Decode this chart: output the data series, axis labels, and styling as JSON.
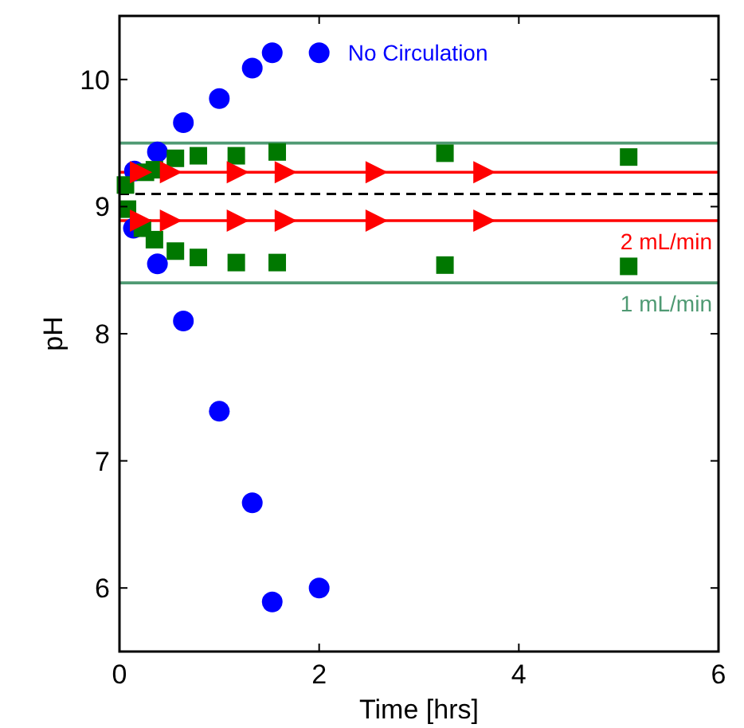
{
  "chart_data": {
    "type": "scatter",
    "xlabel": "Time [hrs]",
    "ylabel": "pH",
    "xlim": [
      0,
      6
    ],
    "ylim": [
      5.5,
      10.5
    ],
    "xticks": [
      0,
      2,
      4,
      6
    ],
    "yticks": [
      6,
      7,
      8,
      9,
      10
    ],
    "grid": false,
    "series": [
      {
        "name": "No Circulation",
        "color": "#0000ff",
        "marker": "circle",
        "x": [
          0.15,
          0.38,
          0.64,
          1.0,
          1.33,
          1.53,
          2.0
        ],
        "values": [
          9.28,
          9.43,
          9.66,
          9.85,
          10.09,
          10.21,
          10.21
        ]
      },
      {
        "color": "#0000ff",
        "marker": "circle",
        "x": [
          0.14,
          0.38,
          0.64,
          1.0,
          1.33,
          1.53,
          2.0
        ],
        "values": [
          8.83,
          8.55,
          8.1,
          7.39,
          6.67,
          5.89,
          6.0
        ]
      },
      {
        "color": "#007800",
        "marker": "square",
        "x": [
          0.06,
          0.26,
          0.35,
          0.56,
          0.79,
          1.17,
          1.58,
          3.26,
          5.1
        ],
        "values": [
          9.17,
          9.27,
          9.29,
          9.38,
          9.4,
          9.4,
          9.43,
          9.42,
          9.39
        ]
      },
      {
        "color": "#007800",
        "marker": "square",
        "x": [
          0.08,
          0.23,
          0.35,
          0.56,
          0.79,
          1.17,
          1.58,
          3.26,
          5.1
        ],
        "values": [
          8.98,
          8.83,
          8.74,
          8.65,
          8.6,
          8.56,
          8.56,
          8.54,
          8.53
        ]
      },
      {
        "color": "#ff0000",
        "marker": "triangle",
        "x": [
          0.2,
          0.5,
          1.17,
          1.65,
          2.56,
          3.64
        ],
        "values": [
          9.27,
          9.27,
          9.27,
          9.27,
          9.27,
          9.27
        ]
      },
      {
        "color": "#ff0000",
        "marker": "triangle",
        "x": [
          0.2,
          0.5,
          1.17,
          1.65,
          2.56,
          3.64
        ],
        "values": [
          8.89,
          8.89,
          8.89,
          8.89,
          8.89,
          8.89
        ]
      }
    ],
    "ref_lines": [
      {
        "axis": "y",
        "value": 9.5,
        "color": "#4f9a73",
        "line_style": "solid"
      },
      {
        "axis": "y",
        "value": 8.4,
        "color": "#4f9a73",
        "line_style": "solid",
        "label": "1 mL/min"
      },
      {
        "axis": "y",
        "value": 9.27,
        "color": "#ff0000",
        "line_style": "solid"
      },
      {
        "axis": "y",
        "value": 8.89,
        "color": "#ff0000",
        "line_style": "solid",
        "label": "2 mL/min"
      },
      {
        "axis": "y",
        "value": 9.1,
        "color": "#000000",
        "line_style": "dashed"
      }
    ]
  }
}
